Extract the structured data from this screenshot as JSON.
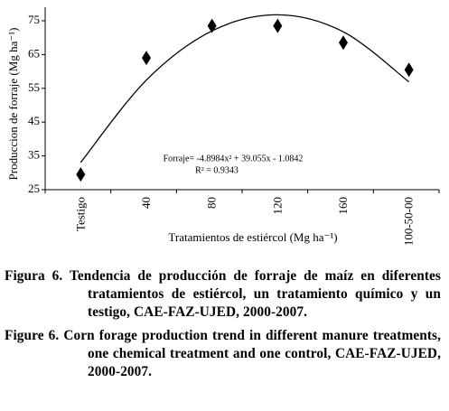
{
  "chart_data": {
    "type": "scatter",
    "y_label": "Produccion de forraje (Mg ha⁻¹)",
    "x_label": "Tratamientos de estiércol (Mg ha⁻¹)",
    "annotations": [
      "Forraje= -4.8984x² + 39.055x - 1.0842",
      "R² = 0.9343"
    ],
    "categories": [
      "Testigo",
      "40",
      "80",
      "120",
      "160",
      "100-50-00"
    ],
    "series": [
      {
        "values": [
          29.5,
          64,
          73.5,
          73.5,
          68.5,
          60.5
        ],
        "color": "#000000",
        "marker": "diamond"
      },
      {
        "values": [
          33.07,
          57.43,
          72.0,
          76.76,
          71.73,
          56.9
        ],
        "color": "#000000",
        "marker": "line"
      }
    ],
    "ylim": [
      25,
      79
    ],
    "yticks": [
      25,
      35,
      45,
      55,
      65,
      75
    ]
  },
  "captions": [
    "Figura 6. Tendencia de producción de forraje de maíz en diferentes tratamientos de estiércol, un tratamiento químico y un testigo, CAE-FAZ-UJED, 2000-2007.",
    "Figure 6. Corn forage production trend in different manure treatments, one chemical treatment and one control, CAE-FAZ-UJED, 2000-2007."
  ]
}
